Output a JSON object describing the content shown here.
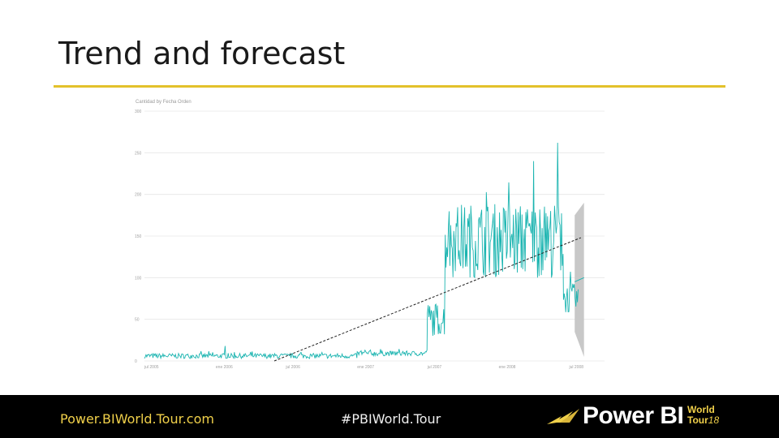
{
  "slide": {
    "title": "Trend and forecast"
  },
  "footer": {
    "site": "Power.BIWorld.Tour.com",
    "hashtag": "#PBIWorld.Tour",
    "logo": {
      "brand": "Power BI",
      "event_line1": "World",
      "event_line2": "Tour",
      "event_year": "18",
      "mark_icon": "power-bi-swoosh-icon"
    }
  },
  "colors": {
    "title_rule": "#e3c12b",
    "series": "#1ab4b0",
    "trend": "#222222",
    "forecast_band": "#c8c8c8",
    "footer_bg": "#000000",
    "footer_site": "#f0d04a",
    "grid": "#e6e6e6"
  },
  "chart_data": {
    "type": "line",
    "title": "Cantidad by Fecha Orden",
    "ylim": [
      0,
      300
    ],
    "yticks": [
      0,
      50,
      100,
      150,
      200,
      250,
      300
    ],
    "xlim": [
      "2005-07-01",
      "2008-09-30"
    ],
    "xticks": [
      {
        "date": "2005-07-01",
        "label": "jul 2005"
      },
      {
        "date": "2006-01-01",
        "label": "ene 2006"
      },
      {
        "date": "2006-07-01",
        "label": "jul 2006"
      },
      {
        "date": "2007-01-01",
        "label": "ene 2007"
      },
      {
        "date": "2007-07-01",
        "label": "jul 2007"
      },
      {
        "date": "2008-01-01",
        "label": "ene 2008"
      },
      {
        "date": "2008-07-01",
        "label": "jul 2008"
      }
    ],
    "grid": true,
    "series": [
      {
        "style": "solid",
        "segments": [
          {
            "start": "2005-07-01",
            "end": "2006-12-31",
            "mean": 6,
            "amplitude": 3
          },
          {
            "start": "2007-01-01",
            "end": "2007-06-30",
            "mean": 9,
            "amplitude": 3
          },
          {
            "start": "2007-07-01",
            "end": "2007-08-15",
            "mean": 50,
            "amplitude": 20
          },
          {
            "start": "2007-08-16",
            "end": "2008-06-15",
            "mean": 145,
            "amplitude": 45
          },
          {
            "start": "2008-06-16",
            "end": "2008-07-25",
            "mean": 75,
            "amplitude": 18
          }
        ],
        "peaks": [
          {
            "date": "2008-06-01",
            "value": 262
          },
          {
            "date": "2008-04-01",
            "value": 240
          },
          {
            "date": "2006-01-25",
            "value": 18
          }
        ]
      },
      {
        "style": "dashed",
        "points": [
          {
            "date": "2006-06-01",
            "value": 0
          },
          {
            "date": "2008-07-31",
            "value": 148
          }
        ]
      }
    ],
    "forecast": {
      "start": "2008-07-15",
      "end": "2008-08-08",
      "line": [
        {
          "date": "2008-07-15",
          "value": 95
        },
        {
          "date": "2008-08-08",
          "value": 100
        }
      ],
      "band_upper": [
        {
          "date": "2008-07-15",
          "value": 175
        },
        {
          "date": "2008-08-08",
          "value": 190
        }
      ],
      "band_lower": [
        {
          "date": "2008-07-15",
          "value": 35
        },
        {
          "date": "2008-08-08",
          "value": 5
        }
      ]
    }
  }
}
